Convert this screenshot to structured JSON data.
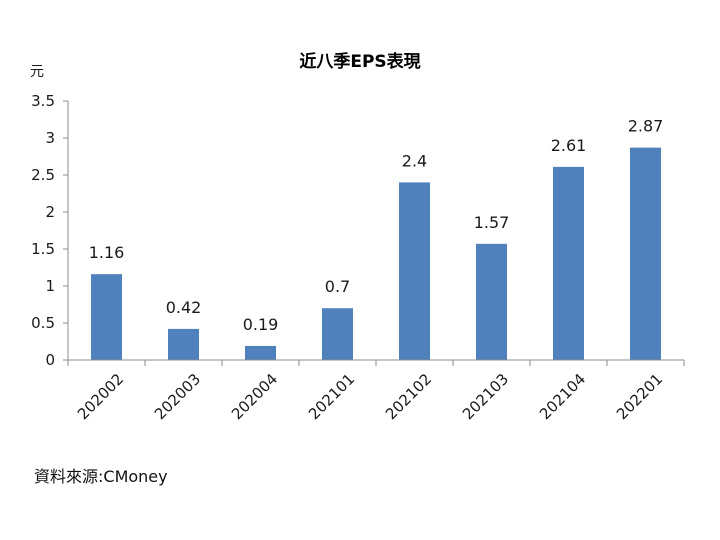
{
  "chart_data": {
    "type": "bar",
    "title": "近八季EPS表現",
    "ylabel": "元",
    "xlabel": "",
    "categories": [
      "202002",
      "202003",
      "202004",
      "202101",
      "202102",
      "202103",
      "202104",
      "202201"
    ],
    "values": [
      1.16,
      0.42,
      0.19,
      0.7,
      2.4,
      1.57,
      2.61,
      2.87
    ],
    "value_labels": [
      "1.16",
      "0.42",
      "0.19",
      "0.7",
      "2.4",
      "1.57",
      "2.61",
      "2.87"
    ],
    "ylim": [
      0,
      3.5
    ],
    "yticks": [
      "0",
      "0.5",
      "1",
      "1.5",
      "2",
      "2.5",
      "3",
      "3.5"
    ],
    "grid": false,
    "legend": "none",
    "bar_color": "#4F81BD"
  },
  "source": "資料來源:CMoney"
}
